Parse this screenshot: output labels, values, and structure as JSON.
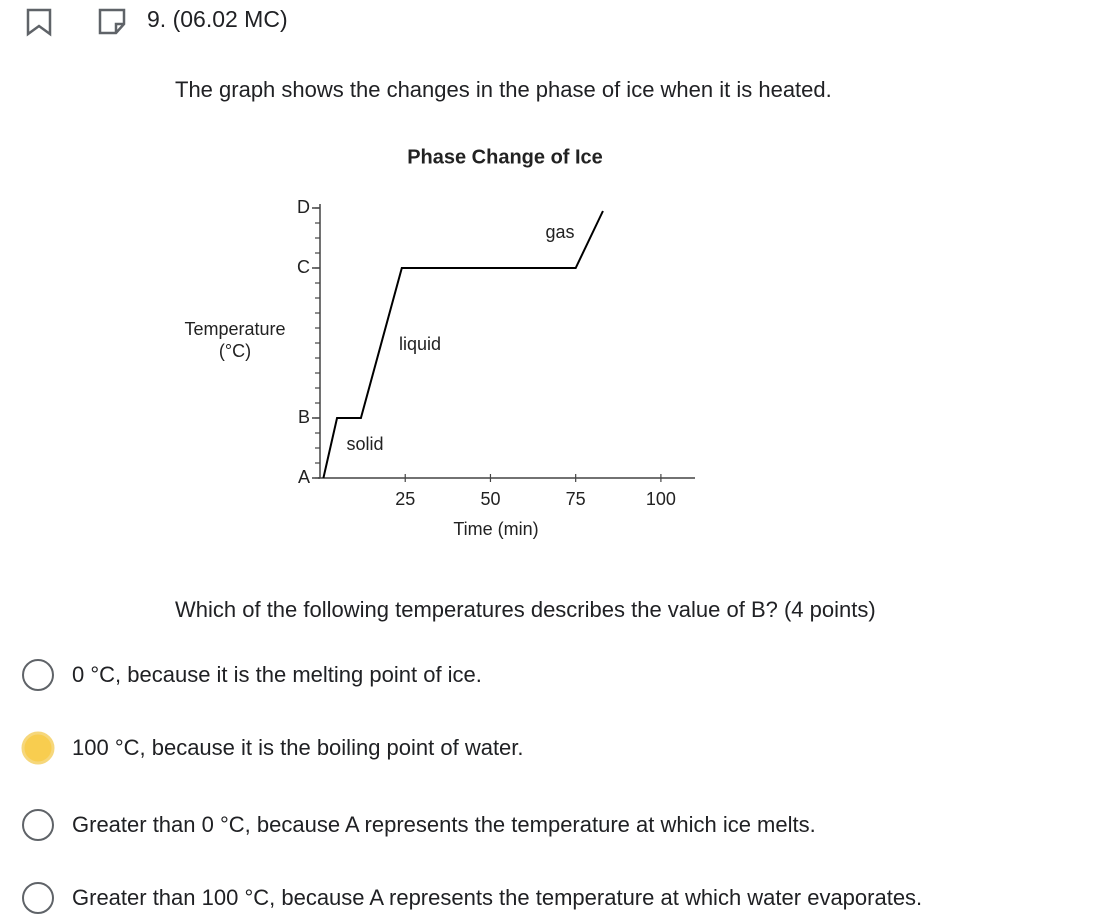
{
  "header": {
    "title": "9. (06.02 MC)"
  },
  "intro": "The graph shows the changes in the phase of ice when it is heated.",
  "chart_data": {
    "type": "line",
    "title": "Phase Change of Ice",
    "x_label": "Time (min)",
    "y_label": "Temperature (°C)",
    "series": [
      {
        "color": "#000000",
        "x": [
          1,
          5,
          12,
          24,
          75,
          83
        ],
        "values": [
          0,
          4,
          4,
          14,
          14,
          17.8
        ]
      }
    ],
    "xlim": [
      0,
      110
    ],
    "xticks": [
      25,
      50,
      75,
      100
    ],
    "ylim": [
      0,
      18
    ],
    "yticks": [
      {
        "value": 0,
        "label": "A"
      },
      {
        "value": 4,
        "label": "B"
      },
      {
        "value": 14,
        "label": "C"
      },
      {
        "value": 18,
        "label": "D"
      }
    ],
    "annotations": [
      "solid",
      "liquid",
      "gas"
    ]
  },
  "question": "Which of the following temperatures describes the value of B? (4 points)",
  "options": [
    {
      "text": "0 °C, because it is the melting point of ice.",
      "selected": false
    },
    {
      "text": "100 °C, because it is the boiling point of water.",
      "selected": true
    },
    {
      "text": "Greater than 0 °C, because A represents the temperature at which ice melts.",
      "selected": false
    },
    {
      "text": "Greater than 100 °C, because A represents the temperature at which water evaporates.",
      "selected": false
    }
  ]
}
